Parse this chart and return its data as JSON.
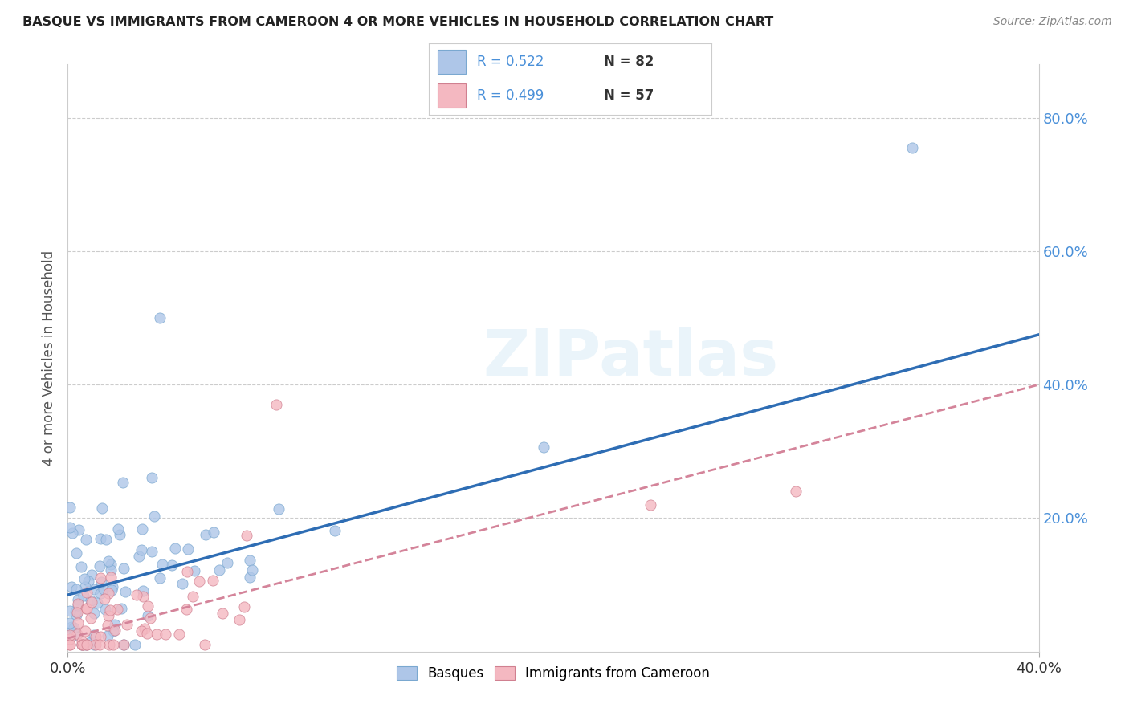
{
  "title": "BASQUE VS IMMIGRANTS FROM CAMEROON 4 OR MORE VEHICLES IN HOUSEHOLD CORRELATION CHART",
  "source": "Source: ZipAtlas.com",
  "ylabel": "4 or more Vehicles in Household",
  "xlim": [
    0.0,
    0.4
  ],
  "ylim": [
    0.0,
    0.88
  ],
  "xtick_vals": [
    0.0,
    0.4
  ],
  "xtick_labels": [
    "0.0%",
    "40.0%"
  ],
  "ytick_vals": [
    0.2,
    0.4,
    0.6,
    0.8
  ],
  "ytick_labels": [
    "20.0%",
    "40.0%",
    "60.0%",
    "80.0%"
  ],
  "legend_r1": "R = 0.522",
  "legend_n1": "N = 82",
  "legend_r2": "R = 0.499",
  "legend_n2": "N = 57",
  "basque_color": "#aec6e8",
  "cameroon_color": "#f4b8c1",
  "basque_line_color": "#2e6db4",
  "cameroon_line_color": "#d4849a",
  "watermark": "ZIPatlas",
  "background_color": "#ffffff",
  "basque_line_x": [
    0.0,
    0.4
  ],
  "basque_line_y": [
    0.085,
    0.475
  ],
  "cameroon_line_x": [
    0.0,
    0.4
  ],
  "cameroon_line_y": [
    0.02,
    0.4
  ]
}
